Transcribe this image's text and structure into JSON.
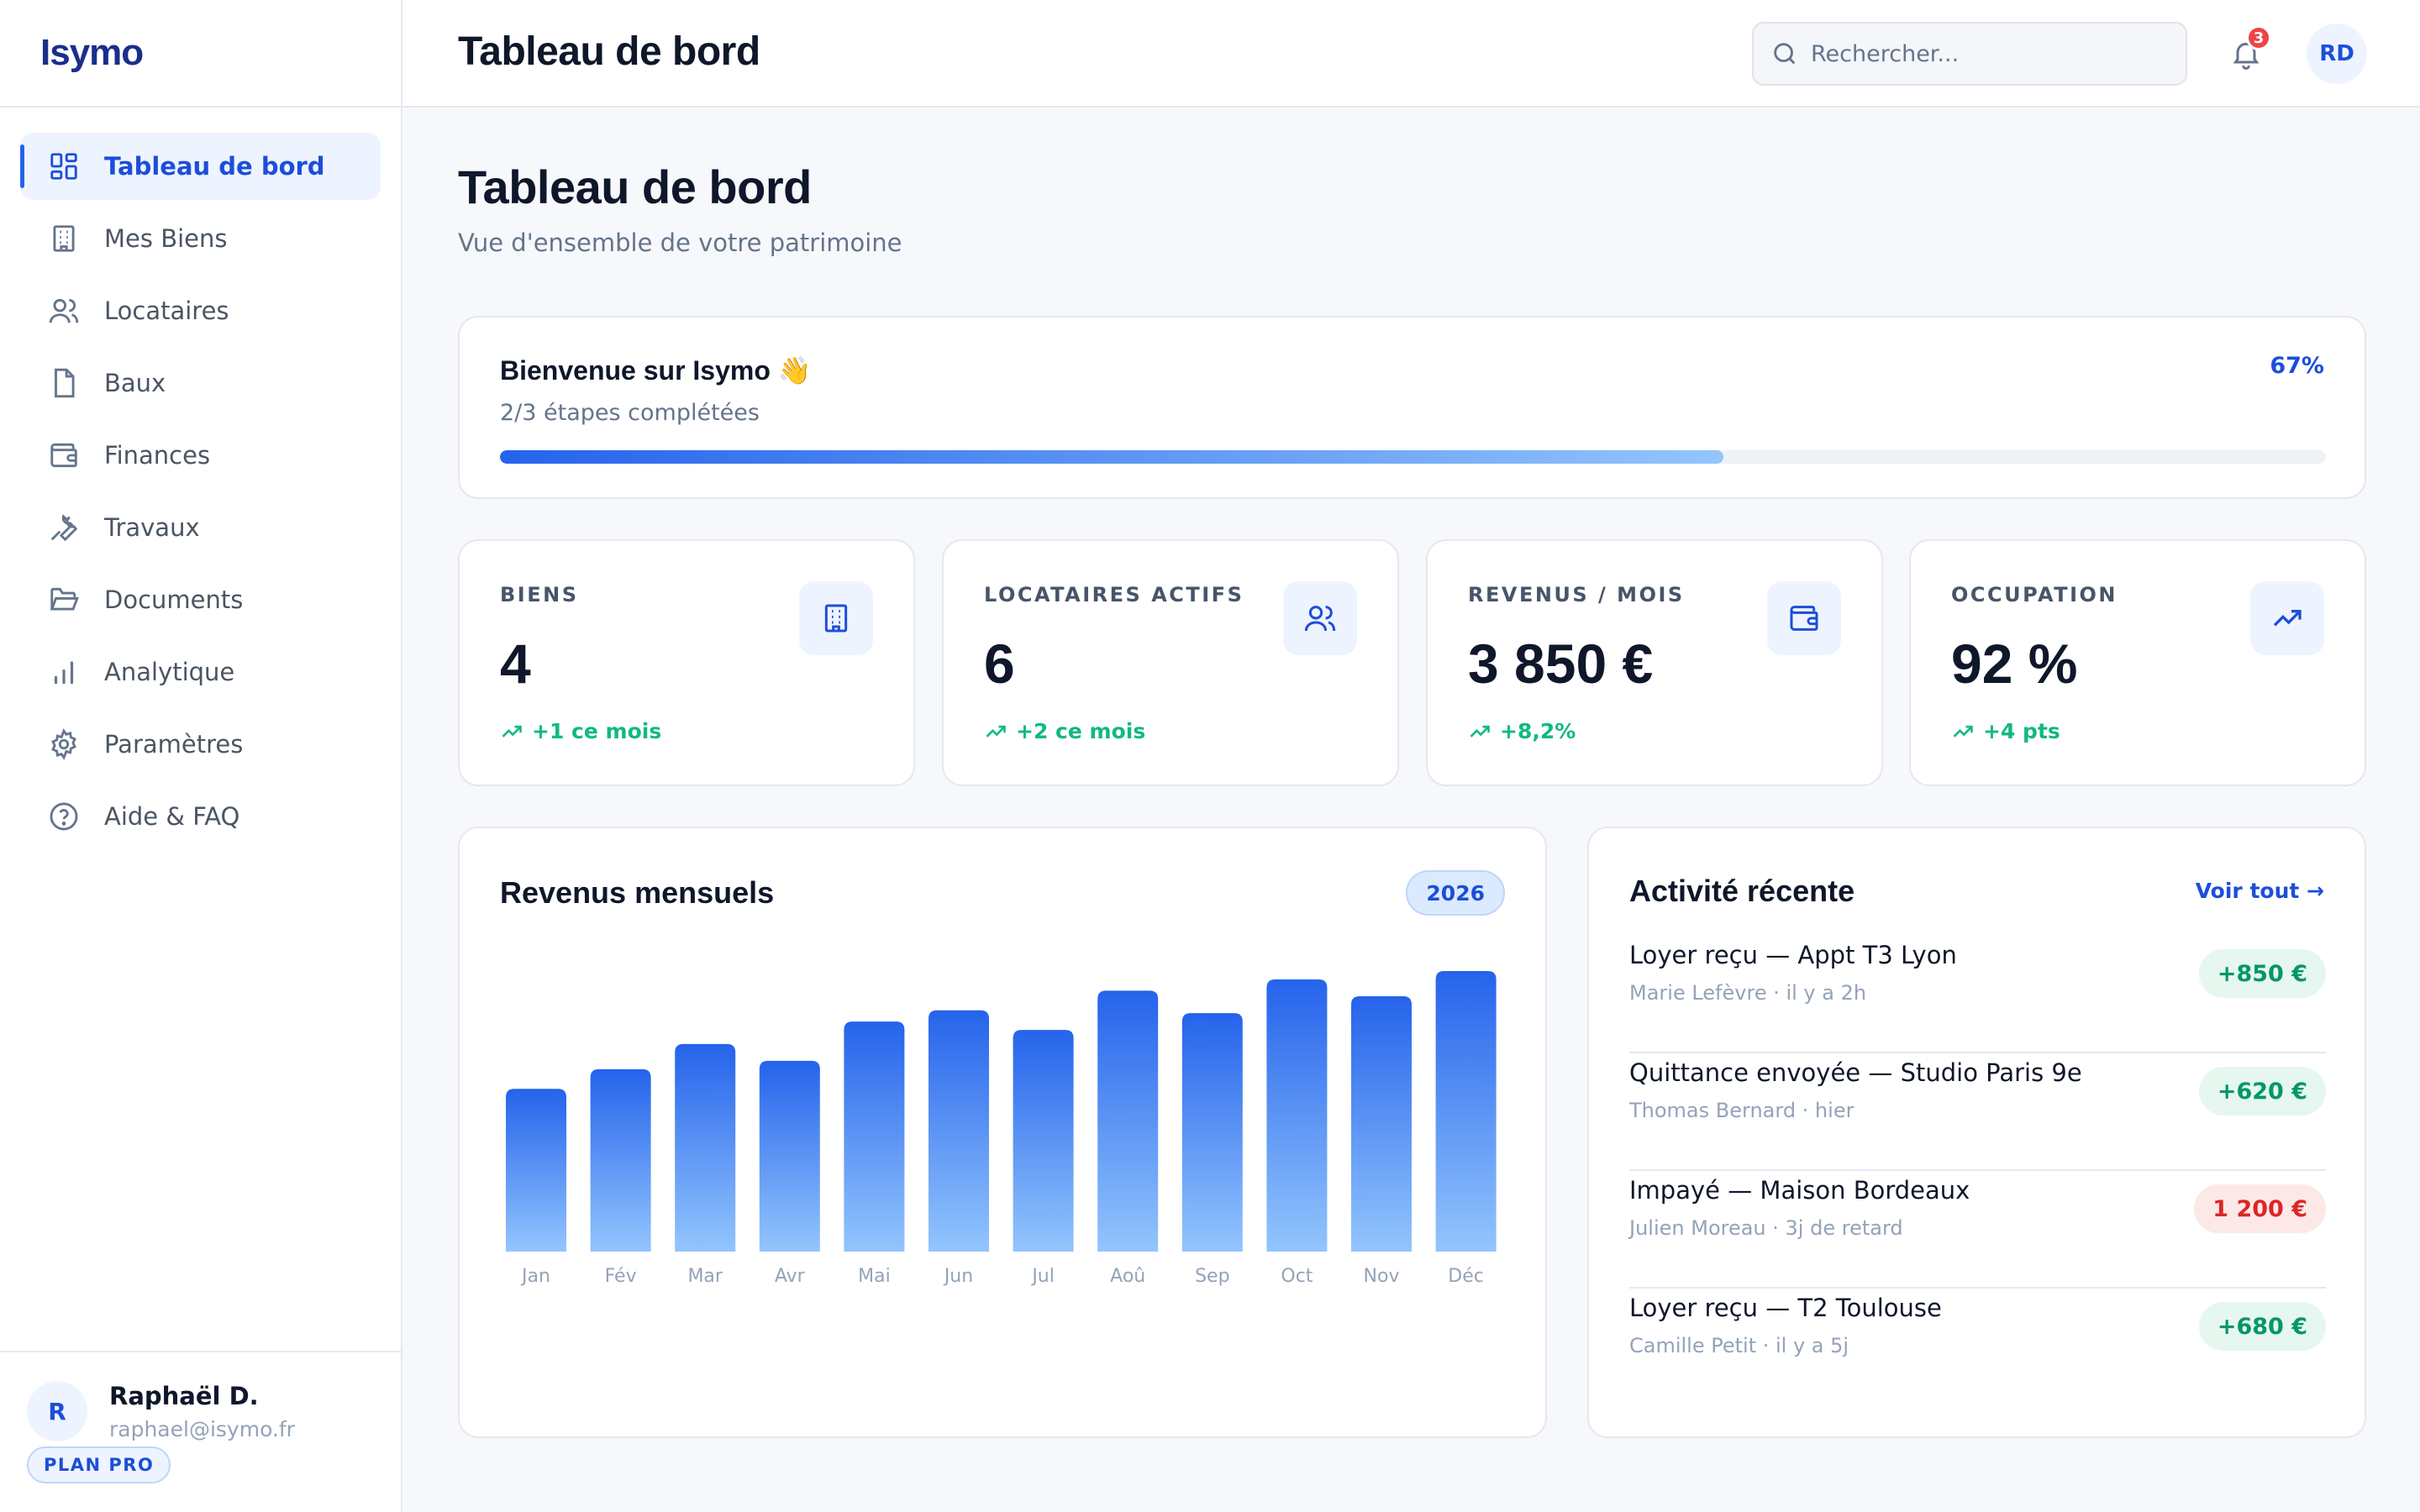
{
  "brand": {
    "name": "Isymo"
  },
  "sidebar": {
    "items": [
      {
        "label": "Tableau de bord",
        "icon": "dashboard-icon",
        "active": true
      },
      {
        "label": "Mes Biens",
        "icon": "building-icon"
      },
      {
        "label": "Locataires",
        "icon": "users-icon"
      },
      {
        "label": "Baux",
        "icon": "document-icon"
      },
      {
        "label": "Finances",
        "icon": "wallet-icon"
      },
      {
        "label": "Travaux",
        "icon": "wrench-icon"
      },
      {
        "label": "Documents",
        "icon": "folder-icon"
      },
      {
        "label": "Analytique",
        "icon": "bar-chart-icon"
      },
      {
        "label": "Paramètres",
        "icon": "gear-icon"
      },
      {
        "label": "Aide & FAQ",
        "icon": "help-icon"
      }
    ],
    "user": {
      "initial": "R",
      "name": "Raphaël D.",
      "email": "raphael@isymo.fr",
      "plan": "PLAN PRO"
    }
  },
  "topbar": {
    "title": "Tableau de bord",
    "search_placeholder": "Rechercher...",
    "notification_count": "3",
    "avatar_initials": "RD"
  },
  "page": {
    "title": "Tableau de bord",
    "subtitle": "Vue d'ensemble de votre patrimoine"
  },
  "welcome": {
    "title": "Bienvenue sur Isymo 👋",
    "steps": "2/3 étapes complétées",
    "percent_label": "67%",
    "progress": 0.67
  },
  "stats": [
    {
      "label": "BIENS",
      "value": "4",
      "trend": "+1 ce mois",
      "icon": "building-icon"
    },
    {
      "label": "LOCATAIRES ACTIFS",
      "value": "6",
      "trend": "+2 ce mois",
      "icon": "users-icon"
    },
    {
      "label": "REVENUS / MOIS",
      "value": "3 850 €",
      "trend": "+8,2%",
      "icon": "wallet-icon"
    },
    {
      "label": "OCCUPATION",
      "value": "92 %",
      "trend": "+4 pts",
      "icon": "trending-up-icon"
    }
  ],
  "revenue_chart": {
    "title": "Revenus mensuels",
    "year": "2026"
  },
  "chart_data": {
    "type": "bar",
    "title": "Revenus mensuels",
    "categories": [
      "Jan",
      "Fév",
      "Mar",
      "Avr",
      "Mai",
      "Jun",
      "Jul",
      "Aoû",
      "Sep",
      "Oct",
      "Nov",
      "Déc"
    ],
    "values": [
      58,
      65,
      74,
      68,
      82,
      86,
      79,
      93,
      85,
      97,
      91,
      100
    ],
    "ylim": [
      0,
      100
    ],
    "grid": false
  },
  "activity": {
    "title": "Activité récente",
    "see_all": "Voir tout →",
    "items": [
      {
        "title": "Loyer reçu — Appt T3 Lyon",
        "meta": "Marie Lefèvre · il y a 2h",
        "amount": "+850 €",
        "kind": "positive"
      },
      {
        "title": "Quittance envoyée — Studio Paris 9e",
        "meta": "Thomas Bernard · hier",
        "amount": "+620 €",
        "kind": "positive"
      },
      {
        "title": "Impayé — Maison Bordeaux",
        "meta": "Julien Moreau · 3j de retard",
        "amount": "1 200 €",
        "kind": "negative"
      },
      {
        "title": "Loyer reçu — T2 Toulouse",
        "meta": "Camille Petit · il y a 5j",
        "amount": "+680 €",
        "kind": "positive"
      }
    ]
  },
  "colors": {
    "accent": "#2563eb",
    "accent_light": "#93c5fd",
    "positive": "#10b981",
    "negative": "#dc2626"
  }
}
